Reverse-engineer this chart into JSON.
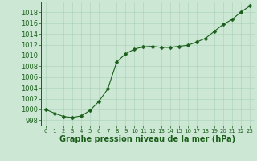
{
  "hours": [
    0,
    1,
    2,
    3,
    4,
    5,
    6,
    7,
    8,
    9,
    10,
    11,
    12,
    13,
    14,
    15,
    16,
    17,
    18,
    19,
    20,
    21,
    22,
    23
  ],
  "pressure": [
    1000.0,
    999.3,
    998.7,
    998.5,
    998.8,
    999.8,
    1001.5,
    1003.8,
    1008.8,
    1010.3,
    1011.2,
    1011.6,
    1011.7,
    1011.5,
    1011.5,
    1011.7,
    1011.9,
    1012.5,
    1013.2,
    1014.5,
    1015.8,
    1016.7,
    1018.1,
    1019.2
  ],
  "line_color": "#1a5e1a",
  "marker": "D",
  "marker_size": 2.5,
  "bg_color": "#cce8d4",
  "grid_color": "#aacfb8",
  "title": "Graphe pression niveau de la mer (hPa)",
  "ylim": [
    997,
    1020
  ],
  "xlim": [
    -0.5,
    23.5
  ],
  "yticks": [
    998,
    1000,
    1002,
    1004,
    1006,
    1008,
    1010,
    1012,
    1014,
    1016,
    1018
  ],
  "xtick_labels": [
    "0",
    "1",
    "2",
    "3",
    "4",
    "5",
    "6",
    "7",
    "8",
    "9",
    "10",
    "11",
    "12",
    "13",
    "14",
    "15",
    "16",
    "17",
    "18",
    "19",
    "20",
    "21",
    "22",
    "23"
  ],
  "title_fontsize": 7,
  "ytick_fontsize": 6,
  "xtick_fontsize": 5,
  "dark_color": "#1a5e1a"
}
